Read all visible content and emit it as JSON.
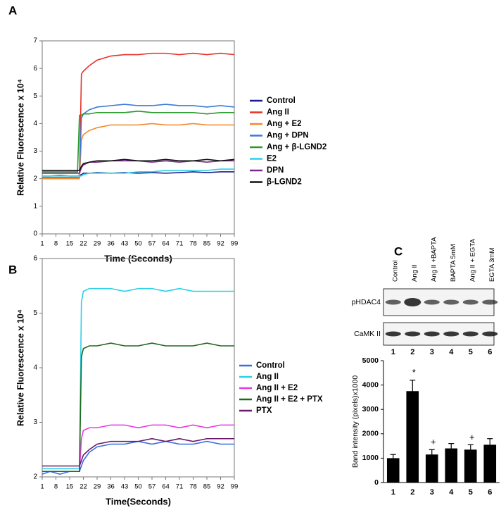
{
  "panels": [
    "A",
    "B",
    "C"
  ],
  "blot": {
    "lanes": [
      "Control",
      "Ang II",
      "Ang II +BAPTA",
      "BAPTA 5mM",
      "Ang II + EGTA",
      "EGTA 3mM"
    ],
    "rows": [
      "pHDAC4",
      "CaMK II"
    ],
    "lane_numbers": [
      "1",
      "2",
      "3",
      "4",
      "5",
      "6"
    ]
  },
  "chart_data": [
    {
      "type": "line",
      "ylabel": "Relative Fluorescence x 10⁴",
      "xlabel": "Time (Seconds)",
      "x": [
        1,
        5,
        10,
        15,
        19,
        20,
        21,
        22,
        25,
        29,
        36,
        43,
        50,
        57,
        64,
        71,
        78,
        85,
        92,
        99
      ],
      "xlim": [
        1,
        99
      ],
      "xticks": [
        1,
        8,
        15,
        22,
        29,
        36,
        43,
        50,
        57,
        64,
        71,
        78,
        85,
        92,
        99
      ],
      "ylim": [
        0,
        7
      ],
      "yticks": [
        0,
        1,
        2,
        3,
        4,
        5,
        6,
        7
      ],
      "series": [
        {
          "name": "Control",
          "color": "#1c1c8a",
          "values": [
            2.1,
            2.1,
            2.12,
            2.1,
            2.1,
            2.12,
            2.15,
            2.2,
            2.2,
            2.22,
            2.2,
            2.22,
            2.2,
            2.22,
            2.2,
            2.22,
            2.25,
            2.22,
            2.25,
            2.25
          ]
        },
        {
          "name": "Ang II",
          "color": "#e8302a",
          "values": [
            2.05,
            2.05,
            2.05,
            2.05,
            2.05,
            2.05,
            5.8,
            5.9,
            6.1,
            6.3,
            6.45,
            6.5,
            6.5,
            6.55,
            6.55,
            6.5,
            6.55,
            6.5,
            6.55,
            6.5
          ]
        },
        {
          "name": "Ang + E2",
          "color": "#f08a2a",
          "values": [
            2.0,
            2.0,
            2.0,
            2.0,
            2.0,
            2.0,
            3.4,
            3.6,
            3.75,
            3.85,
            3.95,
            3.95,
            3.95,
            4.0,
            3.95,
            3.95,
            4.0,
            3.95,
            3.95,
            3.95
          ]
        },
        {
          "name": "Ang + DPN",
          "color": "#3a7ad8",
          "values": [
            2.2,
            2.2,
            2.2,
            2.2,
            2.2,
            2.2,
            4.2,
            4.35,
            4.5,
            4.6,
            4.65,
            4.7,
            4.65,
            4.65,
            4.7,
            4.65,
            4.65,
            4.6,
            4.65,
            4.6
          ]
        },
        {
          "name": "Ang + β-LGND2",
          "color": "#2a9a2a",
          "values": [
            2.25,
            2.25,
            2.25,
            2.25,
            2.25,
            4.3,
            4.3,
            4.35,
            4.35,
            4.4,
            4.4,
            4.4,
            4.45,
            4.4,
            4.4,
            4.4,
            4.4,
            4.35,
            4.4,
            4.4
          ]
        },
        {
          "name": "E2",
          "color": "#2ad0e8",
          "values": [
            2.1,
            2.1,
            2.1,
            2.1,
            2.1,
            2.1,
            2.1,
            2.15,
            2.2,
            2.2,
            2.2,
            2.2,
            2.25,
            2.25,
            2.3,
            2.3,
            2.3,
            2.3,
            2.35,
            2.35
          ]
        },
        {
          "name": "DPN",
          "color": "#7a2a8a",
          "values": [
            2.2,
            2.2,
            2.2,
            2.2,
            2.2,
            2.2,
            2.4,
            2.5,
            2.6,
            2.6,
            2.65,
            2.65,
            2.65,
            2.6,
            2.65,
            2.6,
            2.65,
            2.6,
            2.65,
            2.65
          ]
        },
        {
          "name": "β-LGND2",
          "color": "#111111",
          "values": [
            2.3,
            2.3,
            2.3,
            2.3,
            2.3,
            2.3,
            2.45,
            2.55,
            2.6,
            2.65,
            2.65,
            2.7,
            2.65,
            2.65,
            2.7,
            2.65,
            2.65,
            2.7,
            2.65,
            2.7
          ]
        }
      ]
    },
    {
      "type": "line",
      "ylabel": "Relative Fluorescence x 10⁴",
      "xlabel": "Time(Seconds)",
      "x": [
        1,
        5,
        10,
        15,
        19,
        20,
        21,
        22,
        25,
        29,
        36,
        43,
        50,
        57,
        64,
        71,
        78,
        85,
        92,
        99
      ],
      "xlim": [
        1,
        99
      ],
      "xticks": [
        1,
        8,
        15,
        22,
        29,
        36,
        43,
        50,
        57,
        64,
        71,
        78,
        85,
        92,
        99
      ],
      "ylim": [
        2,
        6
      ],
      "yticks": [
        2,
        3,
        4,
        5,
        6
      ],
      "series": [
        {
          "name": "Control",
          "color": "#3a6ee0",
          "values": [
            2.05,
            2.1,
            2.05,
            2.1,
            2.1,
            2.1,
            2.2,
            2.3,
            2.45,
            2.55,
            2.6,
            2.6,
            2.65,
            2.6,
            2.65,
            2.6,
            2.6,
            2.65,
            2.6,
            2.6
          ]
        },
        {
          "name": "Ang II",
          "color": "#2ad0e8",
          "values": [
            2.15,
            2.15,
            2.15,
            2.15,
            2.15,
            2.15,
            5.2,
            5.4,
            5.45,
            5.45,
            5.45,
            5.4,
            5.45,
            5.45,
            5.4,
            5.45,
            5.4,
            5.4,
            5.4,
            5.4
          ]
        },
        {
          "name": "Ang II + E2",
          "color": "#e83ae0",
          "values": [
            2.1,
            2.1,
            2.1,
            2.1,
            2.1,
            2.1,
            2.7,
            2.85,
            2.9,
            2.9,
            2.95,
            2.95,
            2.9,
            2.95,
            2.95,
            2.9,
            2.95,
            2.9,
            2.95,
            2.95
          ]
        },
        {
          "name": "Ang II + E2 + PTX",
          "color": "#1e6a1e",
          "values": [
            2.1,
            2.1,
            2.1,
            2.1,
            2.1,
            2.1,
            4.2,
            4.35,
            4.4,
            4.4,
            4.45,
            4.4,
            4.4,
            4.45,
            4.4,
            4.4,
            4.4,
            4.45,
            4.4,
            4.4
          ]
        },
        {
          "name": "PTX",
          "color": "#6a1a6a",
          "values": [
            2.2,
            2.2,
            2.2,
            2.2,
            2.2,
            2.2,
            2.3,
            2.4,
            2.5,
            2.6,
            2.65,
            2.65,
            2.65,
            2.7,
            2.65,
            2.7,
            2.65,
            2.7,
            2.7,
            2.7
          ]
        }
      ]
    },
    {
      "type": "bar",
      "ylabel": "Band intensity (pixels)x1000",
      "categories": [
        "1",
        "2",
        "3",
        "4",
        "5",
        "6"
      ],
      "values": [
        1000,
        3750,
        1150,
        1400,
        1350,
        1550
      ],
      "errors": [
        150,
        450,
        200,
        200,
        200,
        250
      ],
      "markers": [
        null,
        "*",
        "+",
        null,
        "+",
        null
      ],
      "color": "#000000",
      "ylim": [
        0,
        5000
      ],
      "yticks": [
        0,
        1000,
        2000,
        3000,
        4000,
        5000
      ]
    }
  ]
}
